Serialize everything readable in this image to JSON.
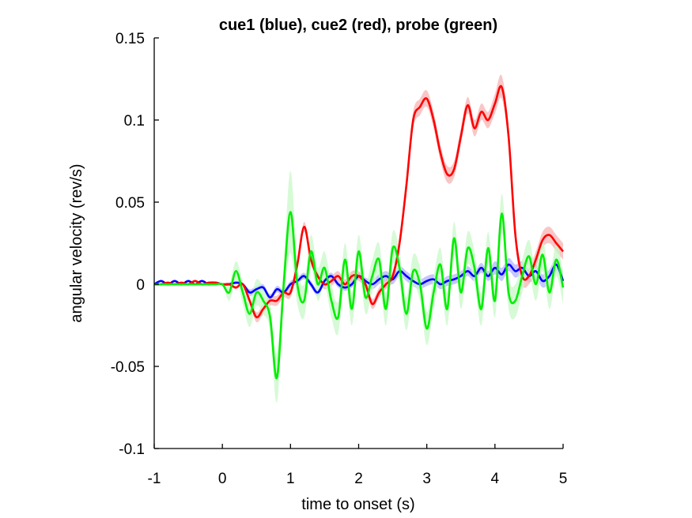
{
  "chart_data": {
    "type": "line",
    "title": "cue1 (blue), cue2 (red), probe (green)",
    "xlabel": "time to onset (s)",
    "ylabel": "angular velocity (rev/s)",
    "xlim": [
      -1,
      5
    ],
    "ylim": [
      -0.1,
      0.15
    ],
    "xticks": [
      -1,
      0,
      1,
      2,
      3,
      4,
      5
    ],
    "xtick_labels": [
      "-1",
      "0",
      "1",
      "2",
      "3",
      "4",
      "5"
    ],
    "yticks": [
      -0.1,
      -0.05,
      0,
      0.05,
      0.1,
      0.15
    ],
    "ytick_labels": [
      "-0.1",
      "-0.05",
      "0",
      "0.05",
      "0.1",
      "0.15"
    ],
    "grid": false,
    "legend": "none",
    "series": [
      {
        "color": "#0000ff",
        "band_color": "#b3b3ff",
        "x": [
          -1.0,
          -0.9,
          -0.8,
          -0.7,
          -0.6,
          -0.5,
          -0.4,
          -0.3,
          -0.2,
          -0.1,
          0.0,
          0.1,
          0.2,
          0.3,
          0.4,
          0.5,
          0.6,
          0.7,
          0.8,
          0.9,
          1.0,
          1.1,
          1.2,
          1.3,
          1.4,
          1.5,
          1.6,
          1.7,
          1.8,
          1.9,
          2.0,
          2.1,
          2.2,
          2.3,
          2.4,
          2.5,
          2.6,
          2.7,
          2.8,
          2.9,
          3.0,
          3.1,
          3.2,
          3.3,
          3.4,
          3.5,
          3.6,
          3.7,
          3.8,
          3.9,
          4.0,
          4.1,
          4.2,
          4.3,
          4.4,
          4.5,
          4.6,
          4.7,
          4.8,
          4.9,
          5.0
        ],
        "y": [
          0.0,
          0.002,
          0.0,
          0.002,
          0.0,
          0.002,
          0.0,
          0.002,
          0.0,
          0.001,
          0.0,
          0.0,
          0.001,
          0.0,
          -0.005,
          -0.003,
          -0.002,
          -0.008,
          -0.003,
          -0.005,
          0.0,
          0.002,
          0.005,
          0.0,
          -0.005,
          0.002,
          0.005,
          0.0,
          -0.002,
          0.0,
          0.005,
          0.002,
          0.0,
          0.003,
          0.005,
          0.003,
          0.008,
          0.005,
          0.002,
          0.0,
          0.002,
          0.003,
          0.0,
          0.002,
          0.003,
          0.005,
          0.008,
          0.005,
          0.01,
          0.005,
          0.01,
          0.006,
          0.012,
          0.008,
          0.01,
          0.005,
          0.008,
          0.002,
          0.005,
          0.012,
          0.002
        ],
        "err": [
          0.0,
          0.0005,
          0.0005,
          0.0005,
          0.0005,
          0.0005,
          0.0005,
          0.0005,
          0.0005,
          0.0005,
          0.0005,
          0.001,
          0.001,
          0.001,
          0.002,
          0.002,
          0.002,
          0.002,
          0.002,
          0.002,
          0.002,
          0.002,
          0.002,
          0.002,
          0.002,
          0.002,
          0.002,
          0.002,
          0.002,
          0.002,
          0.002,
          0.002,
          0.003,
          0.003,
          0.003,
          0.003,
          0.003,
          0.003,
          0.003,
          0.003,
          0.003,
          0.003,
          0.003,
          0.003,
          0.003,
          0.003,
          0.003,
          0.003,
          0.003,
          0.003,
          0.004,
          0.004,
          0.004,
          0.004,
          0.004,
          0.004,
          0.004,
          0.004,
          0.004,
          0.004,
          0.004
        ]
      },
      {
        "color": "#ff0000",
        "band_color": "#f7b3b3",
        "x": [
          -1.0,
          -0.9,
          -0.8,
          -0.7,
          -0.6,
          -0.5,
          -0.4,
          -0.3,
          -0.2,
          -0.1,
          0.0,
          0.1,
          0.2,
          0.3,
          0.4,
          0.5,
          0.6,
          0.7,
          0.8,
          0.9,
          1.0,
          1.1,
          1.2,
          1.3,
          1.4,
          1.5,
          1.6,
          1.7,
          1.8,
          1.9,
          2.0,
          2.1,
          2.2,
          2.3,
          2.4,
          2.5,
          2.6,
          2.7,
          2.8,
          2.9,
          3.0,
          3.1,
          3.2,
          3.3,
          3.4,
          3.5,
          3.6,
          3.7,
          3.8,
          3.9,
          4.0,
          4.1,
          4.2,
          4.3,
          4.4,
          4.5,
          4.6,
          4.7,
          4.8,
          4.9,
          5.0
        ],
        "y": [
          0.0,
          0.0,
          0.001,
          0.0,
          0.001,
          0.0,
          0.002,
          0.0,
          0.001,
          0.001,
          0.0,
          0.0,
          -0.002,
          0.0,
          -0.01,
          -0.02,
          -0.015,
          -0.01,
          -0.01,
          -0.005,
          -0.005,
          0.012,
          0.035,
          0.015,
          0.005,
          0.0,
          0.002,
          0.005,
          0.0,
          0.005,
          0.005,
          0.0,
          -0.012,
          -0.005,
          0.0,
          0.005,
          0.025,
          0.06,
          0.1,
          0.108,
          0.113,
          0.1,
          0.08,
          0.067,
          0.07,
          0.09,
          0.109,
          0.095,
          0.105,
          0.1,
          0.11,
          0.12,
          0.09,
          0.03,
          0.005,
          0.005,
          0.015,
          0.027,
          0.03,
          0.025,
          0.02
        ],
        "err": [
          0.0,
          0.0005,
          0.0005,
          0.0005,
          0.0005,
          0.0005,
          0.0005,
          0.0005,
          0.0005,
          0.0005,
          0.0005,
          0.001,
          0.001,
          0.001,
          0.002,
          0.003,
          0.003,
          0.003,
          0.003,
          0.003,
          0.003,
          0.003,
          0.003,
          0.003,
          0.003,
          0.003,
          0.003,
          0.003,
          0.003,
          0.003,
          0.003,
          0.003,
          0.003,
          0.003,
          0.003,
          0.003,
          0.004,
          0.005,
          0.005,
          0.005,
          0.005,
          0.005,
          0.005,
          0.005,
          0.005,
          0.005,
          0.005,
          0.005,
          0.005,
          0.005,
          0.006,
          0.007,
          0.006,
          0.005,
          0.005,
          0.005,
          0.005,
          0.005,
          0.005,
          0.005,
          0.005
        ]
      },
      {
        "color": "#00ee00",
        "band_color": "#c8f8c8",
        "x": [
          -1.0,
          -0.9,
          -0.8,
          -0.7,
          -0.6,
          -0.5,
          -0.4,
          -0.3,
          -0.2,
          -0.1,
          0.0,
          0.1,
          0.2,
          0.3,
          0.4,
          0.5,
          0.6,
          0.7,
          0.8,
          0.9,
          1.0,
          1.1,
          1.2,
          1.3,
          1.4,
          1.5,
          1.6,
          1.7,
          1.8,
          1.9,
          2.0,
          2.1,
          2.2,
          2.3,
          2.4,
          2.5,
          2.6,
          2.7,
          2.8,
          2.9,
          3.0,
          3.1,
          3.2,
          3.3,
          3.4,
          3.5,
          3.6,
          3.7,
          3.8,
          3.9,
          4.0,
          4.1,
          4.2,
          4.3,
          4.4,
          4.5,
          4.6,
          4.7,
          4.8,
          4.9,
          5.0
        ],
        "y": [
          0.0,
          0.0,
          0.0,
          0.0,
          0.0,
          0.0,
          0.0,
          0.0,
          0.0,
          0.0,
          0.0,
          -0.005,
          0.008,
          -0.005,
          -0.018,
          -0.005,
          -0.01,
          -0.02,
          -0.057,
          0.0,
          0.044,
          0.0,
          -0.01,
          0.02,
          0.0,
          0.01,
          -0.01,
          -0.02,
          0.015,
          -0.015,
          0.02,
          -0.008,
          0.005,
          0.015,
          -0.015,
          0.022,
          0.01,
          -0.018,
          0.008,
          0.0,
          -0.027,
          -0.005,
          0.012,
          -0.015,
          0.028,
          -0.005,
          0.022,
          0.01,
          -0.015,
          0.022,
          -0.01,
          0.043,
          -0.005,
          -0.01,
          0.005,
          0.017,
          0.0,
          0.018,
          -0.005,
          0.015,
          -0.002
        ],
        "err": [
          0.0,
          0.0005,
          0.0005,
          0.0005,
          0.0005,
          0.0005,
          0.0005,
          0.0005,
          0.0005,
          0.0005,
          0.0005,
          0.005,
          0.006,
          0.007,
          0.008,
          0.008,
          0.008,
          0.008,
          0.015,
          0.012,
          0.025,
          0.012,
          0.01,
          0.01,
          0.01,
          0.01,
          0.01,
          0.01,
          0.01,
          0.01,
          0.01,
          0.01,
          0.01,
          0.01,
          0.01,
          0.01,
          0.01,
          0.01,
          0.01,
          0.01,
          0.01,
          0.01,
          0.01,
          0.01,
          0.01,
          0.01,
          0.01,
          0.01,
          0.01,
          0.01,
          0.01,
          0.012,
          0.01,
          0.01,
          0.01,
          0.01,
          0.01,
          0.01,
          0.01,
          0.01,
          0.01
        ]
      }
    ]
  }
}
